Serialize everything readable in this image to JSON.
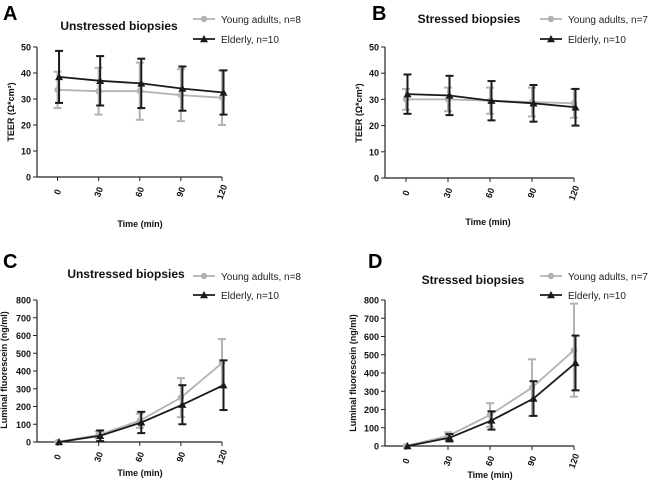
{
  "chart_data": [
    {
      "type": "line",
      "panel_label": "A",
      "title": "Unstressed biopsies",
      "xlabel": "Time (min)",
      "ylabel": "TEER (Ω*cm²)",
      "ylim": [
        0,
        50
      ],
      "yticks": [
        0,
        10,
        20,
        30,
        40,
        50
      ],
      "x": [
        0,
        30,
        60,
        90,
        120
      ],
      "series": [
        {
          "name": "Young adults, n=8",
          "color": "#b3b3b3",
          "marker": "circle",
          "values": [
            33.5,
            33.0,
            33.0,
            31.5,
            30.5
          ],
          "errors": [
            7.0,
            9.0,
            11.0,
            10.0,
            10.5
          ]
        },
        {
          "name": "Elderly, n=10",
          "color": "#1a1a1a",
          "marker": "triangle",
          "values": [
            38.5,
            37.0,
            36.0,
            34.0,
            32.5
          ],
          "errors": [
            10.0,
            9.5,
            9.5,
            8.5,
            8.5
          ]
        }
      ]
    },
    {
      "type": "line",
      "panel_label": "B",
      "title": "Stressed biopsies",
      "xlabel": "Time (min)",
      "ylabel": "TEER (Ω*cm²)",
      "ylim": [
        0,
        50
      ],
      "yticks": [
        0,
        10,
        20,
        30,
        40,
        50
      ],
      "x": [
        0,
        30,
        60,
        90,
        120
      ],
      "series": [
        {
          "name": "Young adults, n=7",
          "color": "#b3b3b3",
          "marker": "circle",
          "values": [
            30.0,
            30.0,
            29.5,
            29.0,
            28.5
          ],
          "errors": [
            4.0,
            4.5,
            5.0,
            5.5,
            5.5
          ]
        },
        {
          "name": "Elderly, n=10",
          "color": "#1a1a1a",
          "marker": "triangle",
          "values": [
            32.0,
            31.5,
            29.5,
            28.5,
            27.0
          ],
          "errors": [
            7.5,
            7.5,
            7.5,
            7.0,
            7.0
          ]
        }
      ]
    },
    {
      "type": "line",
      "panel_label": "C",
      "title": "Unstressed biopsies",
      "xlabel": "Time (min)",
      "ylabel": "Luminal fluorescein (ng/ml)",
      "ylim": [
        0,
        800
      ],
      "yticks": [
        0,
        100,
        200,
        300,
        400,
        500,
        600,
        700,
        800
      ],
      "x": [
        0,
        30,
        60,
        90,
        120
      ],
      "series": [
        {
          "name": "Young adults, n=8",
          "color": "#b3b3b3",
          "marker": "circle",
          "values": [
            0,
            40,
            120,
            250,
            445
          ],
          "errors": [
            0,
            20,
            40,
            110,
            135
          ]
        },
        {
          "name": "Elderly, n=10",
          "color": "#1a1a1a",
          "marker": "triangle",
          "values": [
            0,
            35,
            110,
            210,
            320
          ],
          "errors": [
            0,
            30,
            60,
            110,
            140
          ]
        }
      ]
    },
    {
      "type": "line",
      "panel_label": "D",
      "title": "Stressed biopsies",
      "xlabel": "Time (min)",
      "ylabel": "Luminal fluorescein (ng/ml)",
      "ylim": [
        0,
        800
      ],
      "yticks": [
        0,
        100,
        200,
        300,
        400,
        500,
        600,
        700,
        800
      ],
      "x": [
        0,
        30,
        60,
        90,
        120
      ],
      "series": [
        {
          "name": "Young adults, n=7",
          "color": "#b3b3b3",
          "marker": "circle",
          "values": [
            0,
            55,
            170,
            320,
            525
          ],
          "errors": [
            0,
            20,
            65,
            155,
            255
          ]
        },
        {
          "name": "Elderly, n=10",
          "color": "#1a1a1a",
          "marker": "triangle",
          "values": [
            0,
            45,
            140,
            260,
            455
          ],
          "errors": [
            0,
            20,
            50,
            95,
            150
          ]
        }
      ]
    }
  ]
}
